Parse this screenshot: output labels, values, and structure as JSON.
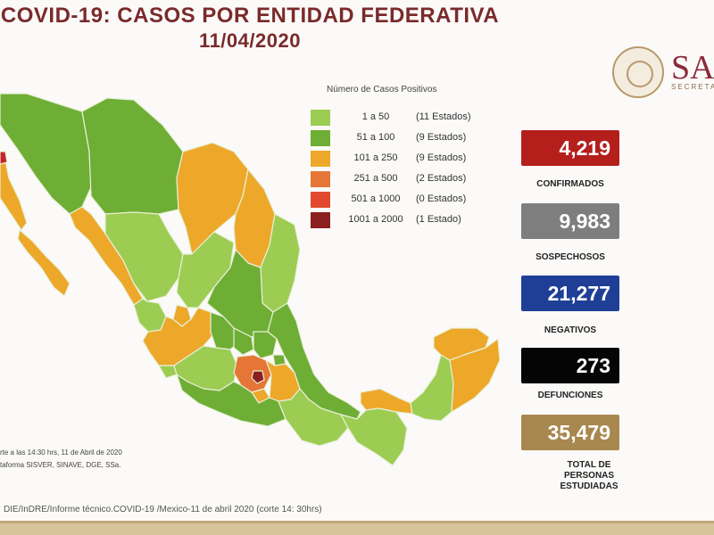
{
  "title": {
    "line1": "COVID-19: CASOS POR ENTIDAD FEDERATIVA",
    "line2": "11/04/2020"
  },
  "brand": {
    "name": "SA",
    "subtitle": "SECRETAR"
  },
  "legend": {
    "title": "Número de Casos Positivos",
    "items": [
      {
        "range": "1 a 50",
        "count": "(11 Estados)",
        "color": "#9ccc52"
      },
      {
        "range": "51 a 100",
        "count": "(9 Estados)",
        "color": "#6fae35"
      },
      {
        "range": "101 a 250",
        "count": "(9 Estados)",
        "color": "#eda82a"
      },
      {
        "range": "251 a 500",
        "count": "(2 Estados)",
        "color": "#e57635"
      },
      {
        "range": "501 a 1000",
        "count": "(0 Estados)",
        "color": "#e14a2e"
      },
      {
        "range": "1001 a 2000",
        "count": "(1 Estado)",
        "color": "#8c1f1f"
      }
    ]
  },
  "stats": [
    {
      "value": "4,219",
      "label": "CONFIRMADOS",
      "color": "#b41f1c"
    },
    {
      "value": "9,983",
      "label": "SOSPECHOSOS",
      "color": "#7e7e7e"
    },
    {
      "value": "21,277",
      "label": "NEGATIVOS",
      "color": "#1f3f97"
    },
    {
      "value": "273",
      "label": "DEFUNCIONES",
      "color": "#050505"
    },
    {
      "value": "35,479",
      "label": "TOTAL DE PERSONAS ESTUDIADAS",
      "color": "#a8884e"
    }
  ],
  "source": {
    "line1": "rte a las 14:30 hrs, 11 de Abril de 2020",
    "line2": "taforma SISVER, SINAVE, DGE, SSa."
  },
  "footer": "DIE/InDRE/Informe técnico.COVID-19 /Mexico-11 de abril 2020 (corte 14: 30hrs)"
}
